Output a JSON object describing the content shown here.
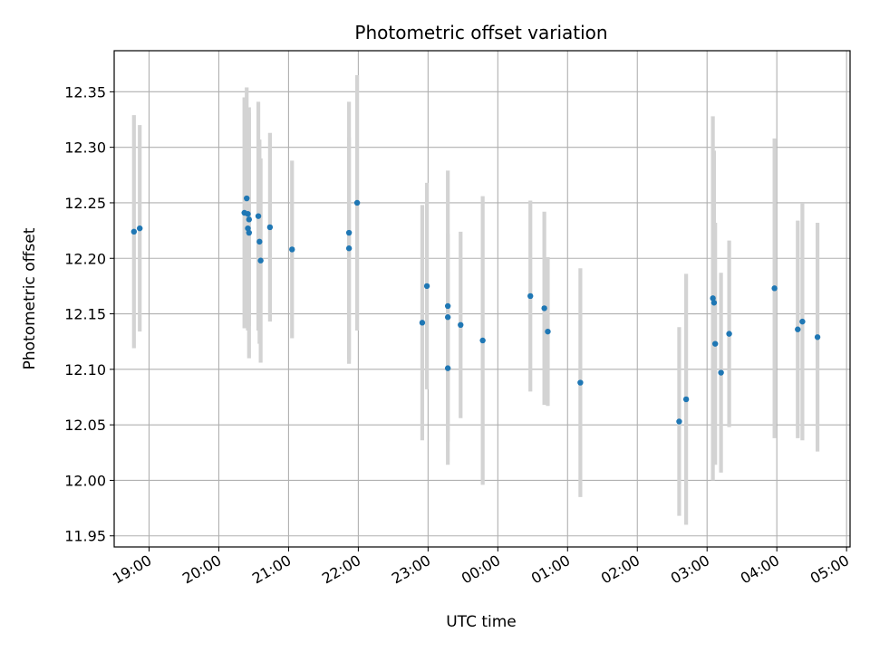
{
  "chart_data": {
    "type": "scatter",
    "title": "Photometric offset variation",
    "xlabel": "UTC time",
    "ylabel": "Photometric offset",
    "grid": true,
    "legend": "none",
    "x_is_time": true,
    "xlim": [
      "18:30",
      "05:03"
    ],
    "ylim": [
      11.94,
      12.387
    ],
    "x_ticks": [
      "19:00",
      "20:00",
      "21:00",
      "22:00",
      "23:00",
      "00:00",
      "01:00",
      "02:00",
      "03:00",
      "04:00",
      "05:00"
    ],
    "y_ticks": [
      "11.95",
      "12.00",
      "12.05",
      "12.10",
      "12.15",
      "12.20",
      "12.25",
      "12.30",
      "12.35"
    ],
    "colors": {
      "point": "#1f77b4",
      "errorbar": "#d3d3d3",
      "grid": "#b0b0b0"
    },
    "series": [
      {
        "points": [
          {
            "x": "18:47",
            "y": 12.224,
            "err": 0.105
          },
          {
            "x": "18:52",
            "y": 12.227,
            "err": 0.093
          },
          {
            "x": "20:22",
            "y": 12.241,
            "err": 0.104
          },
          {
            "x": "20:24",
            "y": 12.254,
            "err": 0.1
          },
          {
            "x": "20:25",
            "y": 12.24,
            "err": 0.095
          },
          {
            "x": "20:25",
            "y": 12.227,
            "err": 0.092
          },
          {
            "x": "20:26",
            "y": 12.223,
            "err": 0.113
          },
          {
            "x": "20:26",
            "y": 12.235,
            "err": 0.096
          },
          {
            "x": "20:34",
            "y": 12.238,
            "err": 0.103
          },
          {
            "x": "20:35",
            "y": 12.215,
            "err": 0.092
          },
          {
            "x": "20:36",
            "y": 12.198,
            "err": 0.092
          },
          {
            "x": "20:44",
            "y": 12.228,
            "err": 0.085
          },
          {
            "x": "21:03",
            "y": 12.208,
            "err": 0.08
          },
          {
            "x": "21:52",
            "y": 12.223,
            "err": 0.118
          },
          {
            "x": "21:52",
            "y": 12.209,
            "err": 0.1
          },
          {
            "x": "21:59",
            "y": 12.25,
            "err": 0.115
          },
          {
            "x": "22:55",
            "y": 12.142,
            "err": 0.106
          },
          {
            "x": "22:59",
            "y": 12.175,
            "err": 0.093
          },
          {
            "x": "23:17",
            "y": 12.157,
            "err": 0.122
          },
          {
            "x": "23:17",
            "y": 12.147,
            "err": 0.075
          },
          {
            "x": "23:17",
            "y": 12.101,
            "err": 0.087
          },
          {
            "x": "23:28",
            "y": 12.14,
            "err": 0.084
          },
          {
            "x": "23:47",
            "y": 12.126,
            "err": 0.13
          },
          {
            "x": "00:28",
            "y": 12.166,
            "err": 0.086
          },
          {
            "x": "00:40",
            "y": 12.155,
            "err": 0.087
          },
          {
            "x": "00:43",
            "y": 12.134,
            "err": 0.067
          },
          {
            "x": "01:11",
            "y": 12.088,
            "err": 0.103
          },
          {
            "x": "02:36",
            "y": 12.053,
            "err": 0.085
          },
          {
            "x": "02:42",
            "y": 12.073,
            "err": 0.113
          },
          {
            "x": "03:05",
            "y": 12.164,
            "err": 0.164
          },
          {
            "x": "03:06",
            "y": 12.16,
            "err": 0.137
          },
          {
            "x": "03:07",
            "y": 12.123,
            "err": 0.109
          },
          {
            "x": "03:12",
            "y": 12.097,
            "err": 0.09
          },
          {
            "x": "03:19",
            "y": 12.132,
            "err": 0.084
          },
          {
            "x": "03:58",
            "y": 12.173,
            "err": 0.135
          },
          {
            "x": "04:18",
            "y": 12.136,
            "err": 0.098
          },
          {
            "x": "04:22",
            "y": 12.143,
            "err": 0.107
          },
          {
            "x": "04:35",
            "y": 12.129,
            "err": 0.103
          }
        ]
      }
    ]
  }
}
